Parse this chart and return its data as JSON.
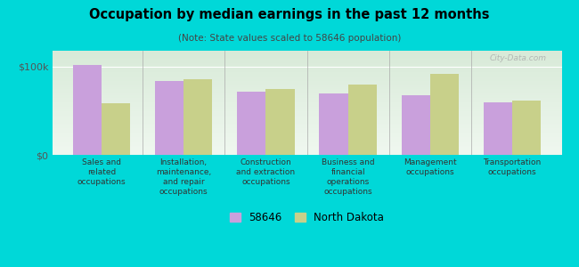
{
  "title": "Occupation by median earnings in the past 12 months",
  "subtitle": "(Note: State values scaled to 58646 population)",
  "bg_outer": "#00d8d8",
  "bg_plot_top": "#d8ead8",
  "bg_plot_bottom": "#f0f8f0",
  "categories": [
    "Sales and\nrelated\noccupations",
    "Installation,\nmaintenance,\nand repair\noccupations",
    "Construction\nand extraction\noccupations",
    "Business and\nfinancial\noperations\noccupations",
    "Management\noccupations",
    "Transportation\noccupations"
  ],
  "values_58646": [
    102000,
    84000,
    72000,
    70000,
    68000,
    60000
  ],
  "values_nd": [
    58000,
    86000,
    75000,
    80000,
    92000,
    62000
  ],
  "color_58646": "#c9a0dc",
  "color_nd": "#c8d08a",
  "ytick_vals": [
    0,
    100000
  ],
  "ytick_labels": [
    "$0",
    "$100k"
  ],
  "ylim_max": 118000,
  "legend_labels": [
    "58646",
    "North Dakota"
  ],
  "bar_width": 0.35,
  "watermark": "City-Data.com"
}
